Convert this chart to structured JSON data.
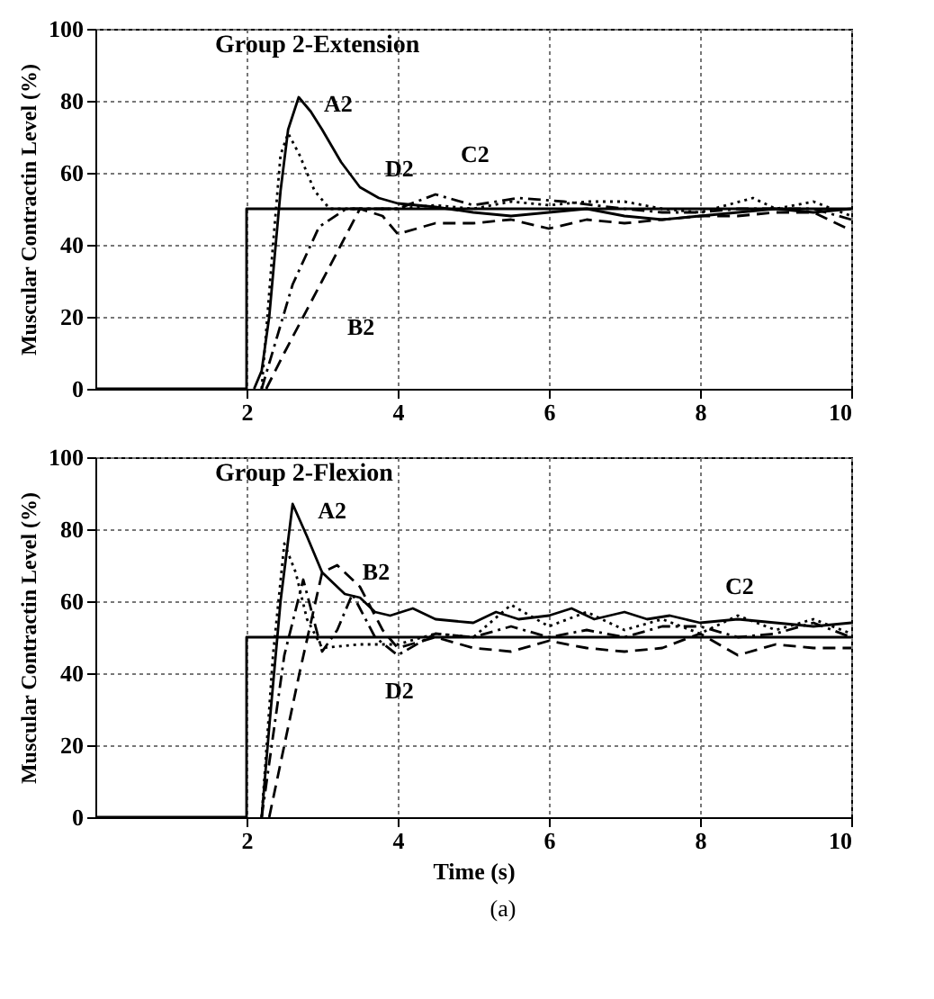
{
  "chart_data": [
    {
      "type": "line",
      "title": "Group 2-Extension",
      "ylabel": "Muscular Contractin Level (%)",
      "xlim": [
        0,
        10
      ],
      "xticks": [
        2,
        4,
        6,
        8,
        10
      ],
      "ylim": [
        0,
        100
      ],
      "yticks": [
        0,
        20,
        40,
        60,
        80,
        100
      ],
      "grid": true,
      "legend": false,
      "annotations": [
        {
          "text": "A2",
          "x": 2.69,
          "y": 81
        },
        {
          "text": "D2",
          "x": 3.5,
          "y": 50
        },
        {
          "text": "C2",
          "x": 4.5,
          "y": 54
        },
        {
          "text": "B2",
          "x": 3,
          "y": 30
        }
      ],
      "series": [
        {
          "color": "#000000",
          "line_style": "solid",
          "x": [
            0,
            2,
            2,
            10
          ],
          "values": [
            0,
            0,
            50,
            50
          ]
        },
        {
          "color": "#000000",
          "line_style": "solid",
          "x": [
            2.1,
            2.2,
            2.3,
            2.45,
            2.55,
            2.69,
            2.85,
            3,
            3.25,
            3.5,
            3.75,
            4,
            4.5,
            5,
            5.5,
            6,
            6.5,
            7,
            7.5,
            8,
            8.5,
            9,
            9.5,
            10
          ],
          "values": [
            0,
            5,
            20,
            55,
            72,
            81,
            77,
            72,
            63,
            56,
            53,
            51.5,
            50.5,
            49,
            48,
            49,
            50,
            48,
            47,
            48,
            49,
            50,
            49,
            50
          ]
        },
        {
          "color": "#000000",
          "line_style": "dashed",
          "x": [
            2.26,
            2.5,
            3,
            3.5,
            3.8,
            4,
            4.5,
            5,
            5.5,
            6,
            6.5,
            7,
            7.5,
            8,
            8.5,
            9,
            9.5,
            10
          ],
          "values": [
            0,
            10,
            30,
            50,
            48,
            43,
            46,
            46,
            47,
            44.5,
            47,
            46,
            47,
            48,
            48,
            49,
            49,
            44
          ]
        },
        {
          "color": "#000000",
          "line_style": "dashdot",
          "x": [
            2.2,
            2.61,
            2.96,
            3.32,
            4,
            4.5,
            5,
            5.6,
            6.2,
            7,
            7.5,
            8,
            8.5,
            9,
            9.5,
            10
          ],
          "values": [
            0,
            29,
            45,
            50,
            50,
            54,
            51,
            53,
            52,
            50,
            49,
            49,
            50,
            50,
            50,
            47
          ]
        },
        {
          "color": "#000000",
          "line_style": "dotted",
          "x": [
            2.2,
            2.35,
            2.45,
            2.55,
            2.7,
            2.9,
            3.1,
            3.5,
            4,
            4.5,
            5,
            5.5,
            6,
            6.5,
            7,
            7.5,
            8,
            8.7,
            9,
            9.5,
            10
          ],
          "values": [
            0,
            40,
            65,
            71,
            65,
            55,
            50,
            50,
            50,
            51,
            50,
            52,
            51,
            52,
            52,
            50,
            49,
            53,
            50,
            52,
            48
          ]
        }
      ]
    },
    {
      "type": "line",
      "title": "Group 2-Flexion",
      "xlabel": "Time (s)",
      "ylabel": "Muscular Contractin Level (%)",
      "xlim": [
        0,
        10
      ],
      "xticks": [
        2,
        4,
        6,
        8,
        10
      ],
      "ylim": [
        0,
        100
      ],
      "yticks": [
        0,
        20,
        40,
        60,
        80,
        100
      ],
      "grid": true,
      "legend": false,
      "annotations": [
        {
          "text": "A2",
          "x": 2.61,
          "y": 87
        },
        {
          "text": "B2",
          "x": 3.2,
          "y": 70
        },
        {
          "text": "C2",
          "x": 8,
          "y": 53
        },
        {
          "text": "D2",
          "x": 3.5,
          "y": 48
        },
        "(a)"
      ],
      "series": [
        {
          "color": "#000000",
          "line_style": "solid",
          "x": [
            0,
            2,
            2,
            10
          ],
          "values": [
            0,
            0,
            50,
            50
          ]
        },
        {
          "color": "#000000",
          "line_style": "solid",
          "x": [
            2.2,
            2.3,
            2.45,
            2.61,
            2.8,
            3,
            3.3,
            3.5,
            3.7,
            3.9,
            4.2,
            4.5,
            5,
            5.3,
            5.6,
            6,
            6.3,
            6.6,
            7,
            7.3,
            7.6,
            8,
            8.5,
            9,
            9.5,
            10
          ],
          "values": [
            0,
            25,
            60,
            87,
            78,
            68,
            62,
            61,
            57,
            56,
            58,
            55,
            54,
            57,
            55,
            56,
            58,
            55,
            57,
            55,
            56,
            54,
            55,
            54,
            53,
            54
          ]
        },
        {
          "color": "#000000",
          "line_style": "dashed",
          "x": [
            2.3,
            2.7,
            3,
            3.2,
            3.5,
            3.8,
            4,
            4.5,
            5,
            5.5,
            6,
            6.5,
            7,
            7.5,
            8,
            8.5,
            9,
            9.5,
            10
          ],
          "values": [
            0,
            40,
            68,
            70,
            64,
            52,
            47,
            50,
            47,
            46,
            49,
            47,
            46,
            47,
            51,
            45,
            48,
            47,
            47
          ]
        },
        {
          "color": "#000000",
          "line_style": "dashdot",
          "x": [
            2.2,
            2.5,
            2.75,
            3,
            3.2,
            3.4,
            3.7,
            4,
            4.5,
            5,
            5.5,
            6,
            6.5,
            7,
            7.5,
            8,
            8.5,
            9,
            9.5,
            10
          ],
          "values": [
            0,
            45,
            66,
            46,
            52,
            62,
            50,
            45,
            51,
            50,
            53,
            50,
            52,
            50,
            53,
            53,
            50,
            51,
            54,
            50
          ]
        },
        {
          "color": "#000000",
          "line_style": "dotted",
          "x": [
            2.2,
            2.35,
            2.5,
            2.65,
            2.8,
            3,
            3.5,
            4,
            4.5,
            5,
            5.5,
            6,
            6.5,
            7,
            7.5,
            8,
            8.5,
            9,
            9.5,
            10
          ],
          "values": [
            0,
            45,
            76,
            68,
            55,
            47,
            48,
            48,
            51,
            50,
            59,
            53,
            57,
            52,
            55,
            51,
            56,
            52,
            55,
            51
          ]
        }
      ]
    }
  ]
}
